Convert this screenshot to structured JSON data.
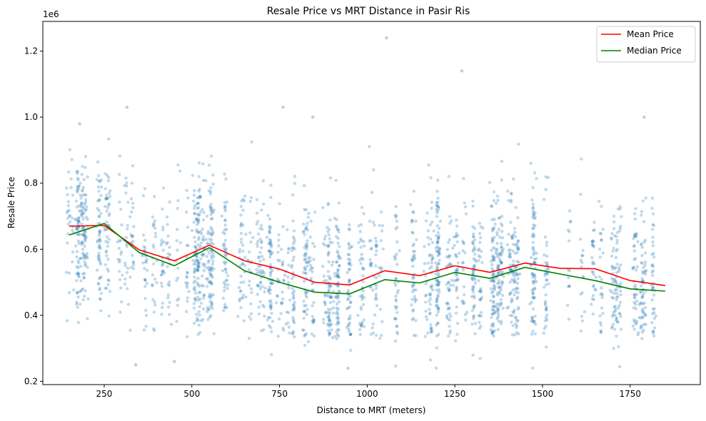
{
  "chart_data": {
    "type": "scatter",
    "title": "Resale Price vs MRT Distance in Pasir Ris",
    "xlabel": "Distance to MRT (meters)",
    "ylabel": "Resale Price",
    "y_offset_label": "1e6",
    "xlim": [
      75,
      1950
    ],
    "ylim": [
      190000,
      1290000
    ],
    "x_ticks": [
      250,
      500,
      750,
      1000,
      1250,
      1500,
      1750
    ],
    "y_ticks": [
      200000,
      400000,
      600000,
      800000,
      1000000,
      1200000
    ],
    "y_tick_labels": [
      "0.2",
      "0.4",
      "0.6",
      "0.8",
      "1.0",
      "1.2"
    ],
    "grid": false,
    "legend_position": "top-right",
    "colors": {
      "scatter": "#1f77b4",
      "mean": "#ff0000",
      "median": "#008000"
    },
    "scatter_series": {
      "x_range": [
        145,
        1870
      ],
      "y_range": [
        240000,
        1240000
      ],
      "notable_points": [
        {
          "x": 1055,
          "y": 1240000
        },
        {
          "x": 1270,
          "y": 1140000
        },
        {
          "x": 315,
          "y": 1030000
        },
        {
          "x": 760,
          "y": 1030000
        },
        {
          "x": 845,
          "y": 1000000
        },
        {
          "x": 1790,
          "y": 1000000
        },
        {
          "x": 180,
          "y": 980000
        },
        {
          "x": 340,
          "y": 250000
        },
        {
          "x": 450,
          "y": 260000
        },
        {
          "x": 945,
          "y": 240000
        }
      ]
    },
    "series": [
      {
        "name": "Mean Price",
        "x": [
          150,
          250,
          350,
          450,
          550,
          650,
          750,
          850,
          950,
          1050,
          1150,
          1250,
          1350,
          1450,
          1550,
          1650,
          1750,
          1850
        ],
        "values": [
          670000,
          672000,
          598000,
          565000,
          612000,
          565000,
          540000,
          500000,
          492000,
          535000,
          520000,
          550000,
          530000,
          558000,
          542000,
          541000,
          505000,
          490000
        ]
      },
      {
        "name": "Median Price",
        "x": [
          150,
          250,
          350,
          450,
          550,
          650,
          750,
          850,
          950,
          1050,
          1150,
          1250,
          1350,
          1450,
          1550,
          1650,
          1750,
          1850
        ],
        "values": [
          643000,
          678000,
          590000,
          550000,
          605000,
          535000,
          500000,
          470000,
          465000,
          508000,
          498000,
          530000,
          512000,
          545000,
          525000,
          505000,
          480000,
          473000
        ]
      }
    ]
  }
}
